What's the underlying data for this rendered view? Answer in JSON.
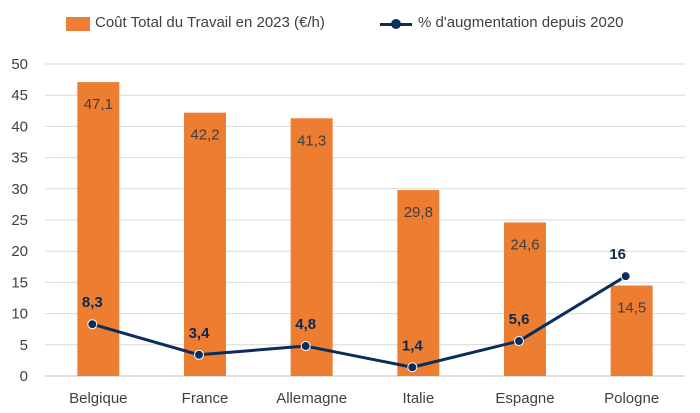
{
  "colors": {
    "bar": "#ED7D31",
    "line": "#0B2D5B",
    "grid": "#D9D9D9",
    "axis_text": "#404040"
  },
  "legend": {
    "bar_label": "Coût Total du Travail en 2023 (€/h)",
    "line_label": "% d'augmentation depuis 2020"
  },
  "chart_data": {
    "type": "bar",
    "categories": [
      "Belgique",
      "France",
      "Allemagne",
      "Italie",
      "Espagne",
      "Pologne"
    ],
    "series": [
      {
        "name": "Coût Total du Travail en 2023 (€/h)",
        "type": "bar",
        "values": [
          47.1,
          42.2,
          41.3,
          29.8,
          24.6,
          14.5
        ],
        "labels": [
          "47,1",
          "42,2",
          "41,3",
          "29,8",
          "24,6",
          "14,5"
        ]
      },
      {
        "name": "% d'augmentation depuis 2020",
        "type": "line",
        "values": [
          8.3,
          3.4,
          4.8,
          1.4,
          5.6,
          16
        ],
        "labels": [
          "8,3",
          "3,4",
          "4,8",
          "1,4",
          "5,6",
          "16"
        ]
      }
    ],
    "ylim": [
      0,
      50
    ],
    "yticks": [
      0,
      5,
      10,
      15,
      20,
      25,
      30,
      35,
      40,
      45,
      50
    ],
    "grid": true,
    "legend_position": "top"
  }
}
